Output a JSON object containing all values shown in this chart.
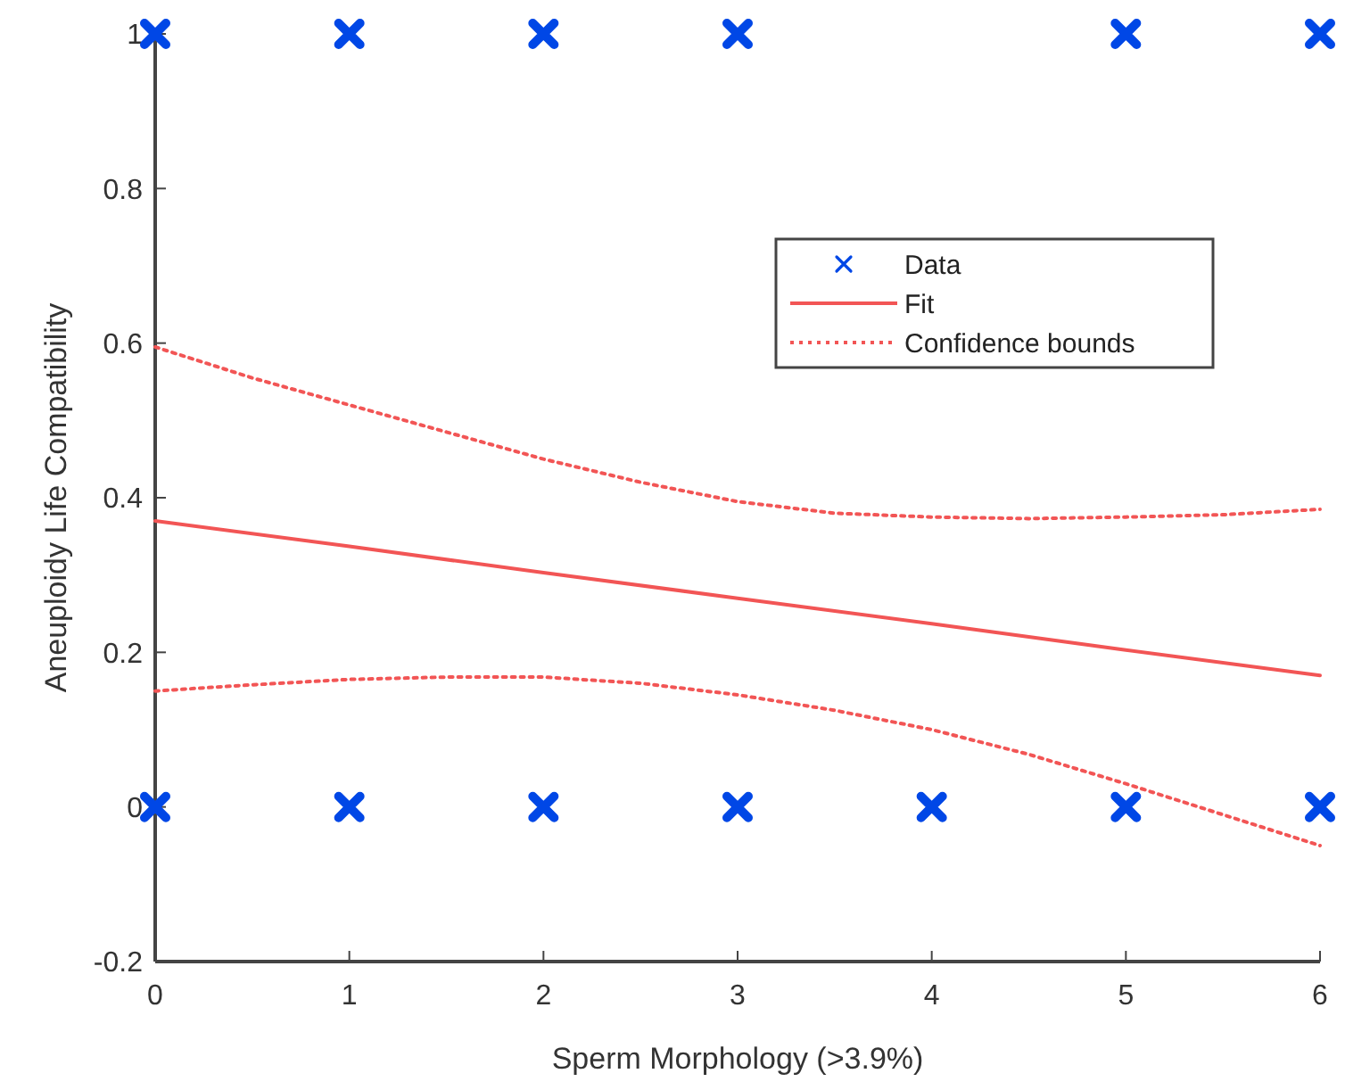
{
  "chart_data": {
    "type": "scatter",
    "xlabel": "Sperm Morphology (>3.9%)",
    "ylabel": "Aneuploidy Life Compatibility",
    "xlim": [
      0,
      6
    ],
    "xticks": [
      0,
      1,
      2,
      3,
      4,
      5,
      6
    ],
    "ylim": [
      -0.2,
      1
    ],
    "yticks": [
      -0.2,
      0,
      0.2,
      0.4,
      0.6,
      0.8,
      1
    ],
    "grid": false,
    "legend": "top right",
    "series": [
      {
        "name": "Data",
        "color": "#0047e6",
        "marker": "cross",
        "x": [
          0,
          1,
          2,
          3,
          5,
          6,
          0,
          1,
          2,
          3,
          4,
          5,
          6
        ],
        "values": [
          1,
          1,
          1,
          1,
          1,
          1,
          0,
          0,
          0,
          0,
          0,
          0,
          0
        ]
      },
      {
        "name": "Fit",
        "type": "line",
        "color": "#f25555",
        "line_style": "solid",
        "marker": "none",
        "x": [
          0,
          1,
          2,
          3,
          4,
          5,
          6
        ],
        "values": [
          0.37,
          0.337,
          0.303,
          0.27,
          0.237,
          0.203,
          0.17
        ]
      },
      {
        "name": "Confidence bounds",
        "type": "line",
        "color": "#f25555",
        "line_style": "dotted",
        "marker": "none",
        "x": [
          0,
          0.5,
          1,
          1.5,
          2,
          2.5,
          3,
          3.5,
          4,
          4.5,
          5,
          5.5,
          6
        ],
        "values": [
          0.595,
          0.555,
          0.52,
          0.485,
          0.45,
          0.42,
          0.395,
          0.38,
          0.375,
          0.373,
          0.375,
          0.378,
          0.385
        ]
      },
      {
        "type": "line",
        "color": "#f25555",
        "line_style": "dotted",
        "marker": "none",
        "x": [
          0,
          0.5,
          1,
          1.5,
          2,
          2.5,
          3,
          3.5,
          4,
          4.5,
          5,
          5.5,
          6
        ],
        "values": [
          0.15,
          0.158,
          0.165,
          0.168,
          0.168,
          0.16,
          0.145,
          0.125,
          0.1,
          0.068,
          0.03,
          -0.01,
          -0.05
        ]
      }
    ]
  }
}
